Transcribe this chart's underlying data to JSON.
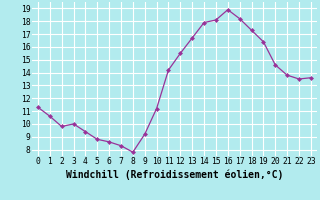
{
  "x": [
    0,
    1,
    2,
    3,
    4,
    5,
    6,
    7,
    8,
    9,
    10,
    11,
    12,
    13,
    14,
    15,
    16,
    17,
    18,
    19,
    20,
    21,
    22,
    23
  ],
  "y": [
    11.3,
    10.6,
    9.8,
    10.0,
    9.4,
    8.8,
    8.6,
    8.3,
    7.8,
    9.2,
    11.2,
    14.2,
    15.5,
    16.7,
    17.9,
    18.1,
    18.9,
    18.2,
    17.3,
    16.4,
    14.6,
    13.8,
    13.5,
    13.6
  ],
  "xlabel": "Windchill (Refroidissement éolien,°C)",
  "ylim": [
    7.5,
    19.5
  ],
  "xlim": [
    -0.5,
    23.5
  ],
  "yticks": [
    8,
    9,
    10,
    11,
    12,
    13,
    14,
    15,
    16,
    17,
    18,
    19
  ],
  "xticks": [
    0,
    1,
    2,
    3,
    4,
    5,
    6,
    7,
    8,
    9,
    10,
    11,
    12,
    13,
    14,
    15,
    16,
    17,
    18,
    19,
    20,
    21,
    22,
    23
  ],
  "line_color": "#993399",
  "marker": "D",
  "marker_size": 2.0,
  "bg_color": "#b2ebee",
  "grid_color": "#ffffff",
  "tick_label_fontsize": 5.8,
  "xlabel_fontsize": 7.0,
  "linewidth": 0.9
}
